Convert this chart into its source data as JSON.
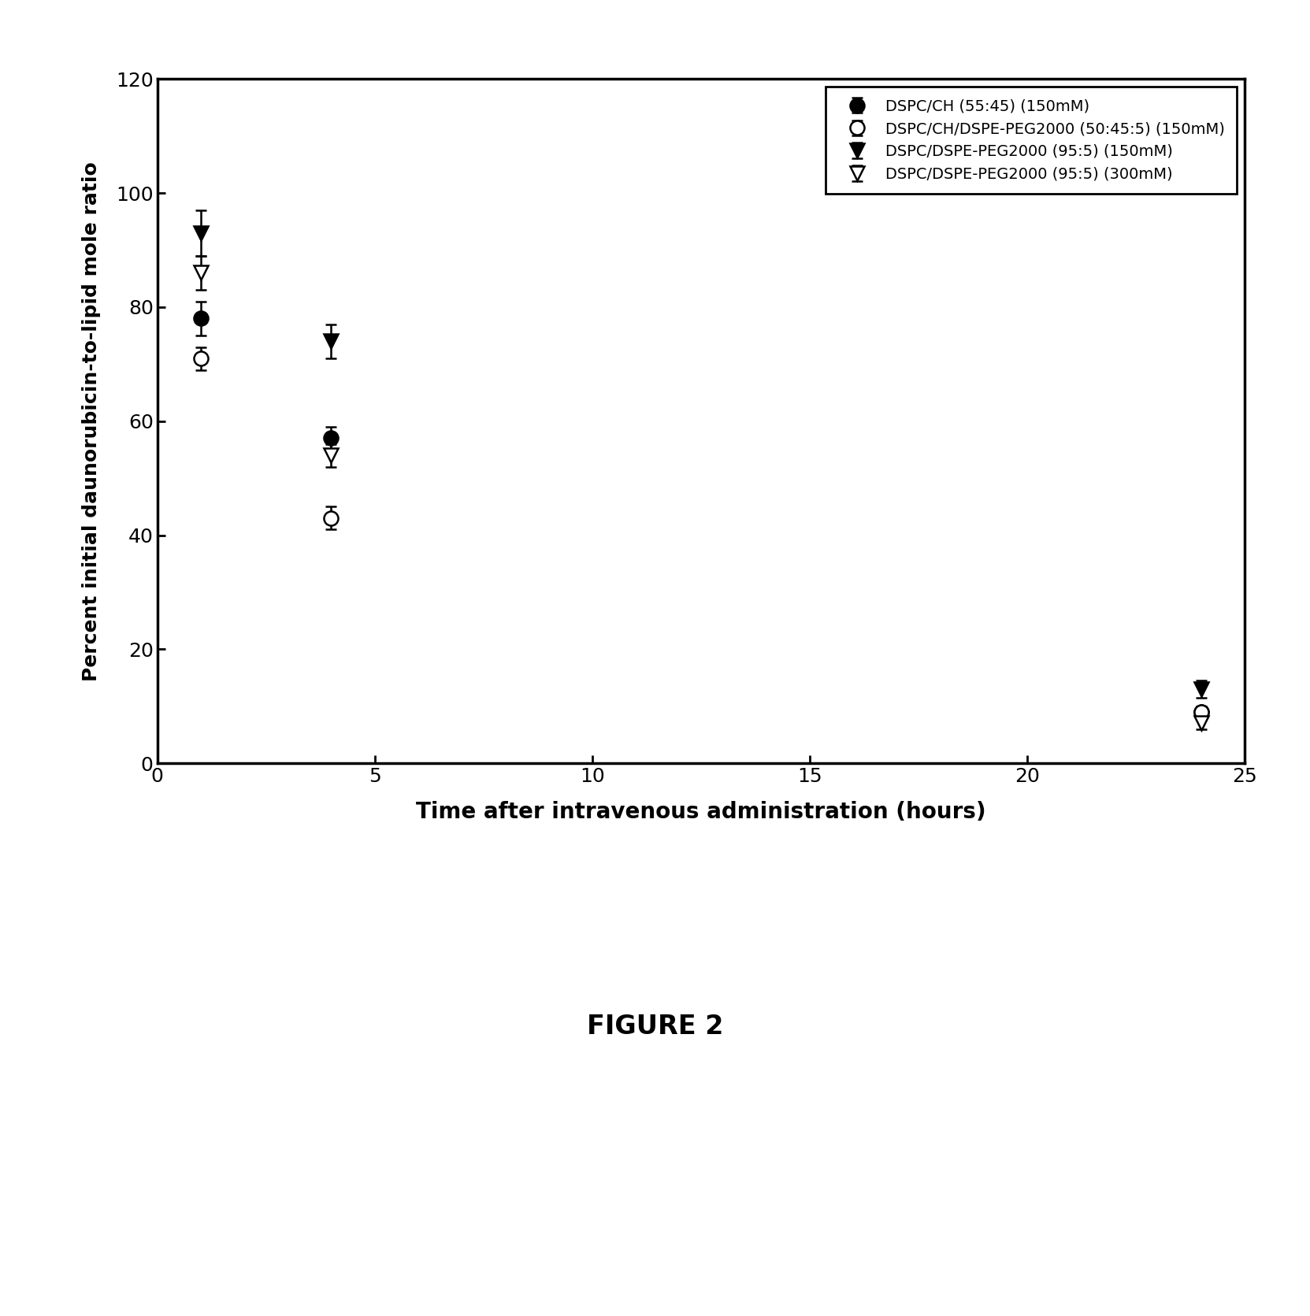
{
  "series": [
    {
      "label": "DSPC/CH (55:45) (150mM)",
      "x": [
        1,
        4,
        24
      ],
      "y": [
        78,
        57,
        9
      ],
      "yerr": [
        3,
        2,
        1
      ],
      "marker": "o",
      "filled": true,
      "color": "black",
      "linewidth": 2.5
    },
    {
      "label": "DSPC/CH/DSPE-PEG2000 (50:45:5) (150mM)",
      "x": [
        1,
        4,
        24
      ],
      "y": [
        71,
        43,
        9
      ],
      "yerr": [
        2,
        2,
        1
      ],
      "marker": "o",
      "filled": false,
      "color": "black",
      "linewidth": 2.5
    },
    {
      "label": "DSPC/DSPE-PEG2000 (95:5) (150mM)",
      "x": [
        1,
        4,
        24
      ],
      "y": [
        93,
        74,
        13
      ],
      "yerr": [
        4,
        3,
        1.5
      ],
      "marker": "v",
      "filled": true,
      "color": "black",
      "linewidth": 2.5
    },
    {
      "label": "DSPC/DSPE-PEG2000 (95:5) (300mM)",
      "x": [
        1,
        4,
        24
      ],
      "y": [
        86,
        54,
        7
      ],
      "yerr": [
        3,
        2,
        1
      ],
      "marker": "v",
      "filled": false,
      "color": "black",
      "linewidth": 2.5
    }
  ],
  "xlabel": "Time after intravenous administration (hours)",
  "ylabel": "Percent initial daunorubicin-to-lipid mole ratio",
  "xlim": [
    0,
    25
  ],
  "ylim": [
    0,
    120
  ],
  "xticks": [
    0,
    5,
    10,
    15,
    20,
    25
  ],
  "yticks": [
    0,
    20,
    40,
    60,
    80,
    100,
    120
  ],
  "xlabel_fontsize": 20,
  "ylabel_fontsize": 18,
  "tick_fontsize": 18,
  "legend_fontsize": 14,
  "title": "FIGURE 2",
  "title_fontsize": 24,
  "background_color": "white"
}
